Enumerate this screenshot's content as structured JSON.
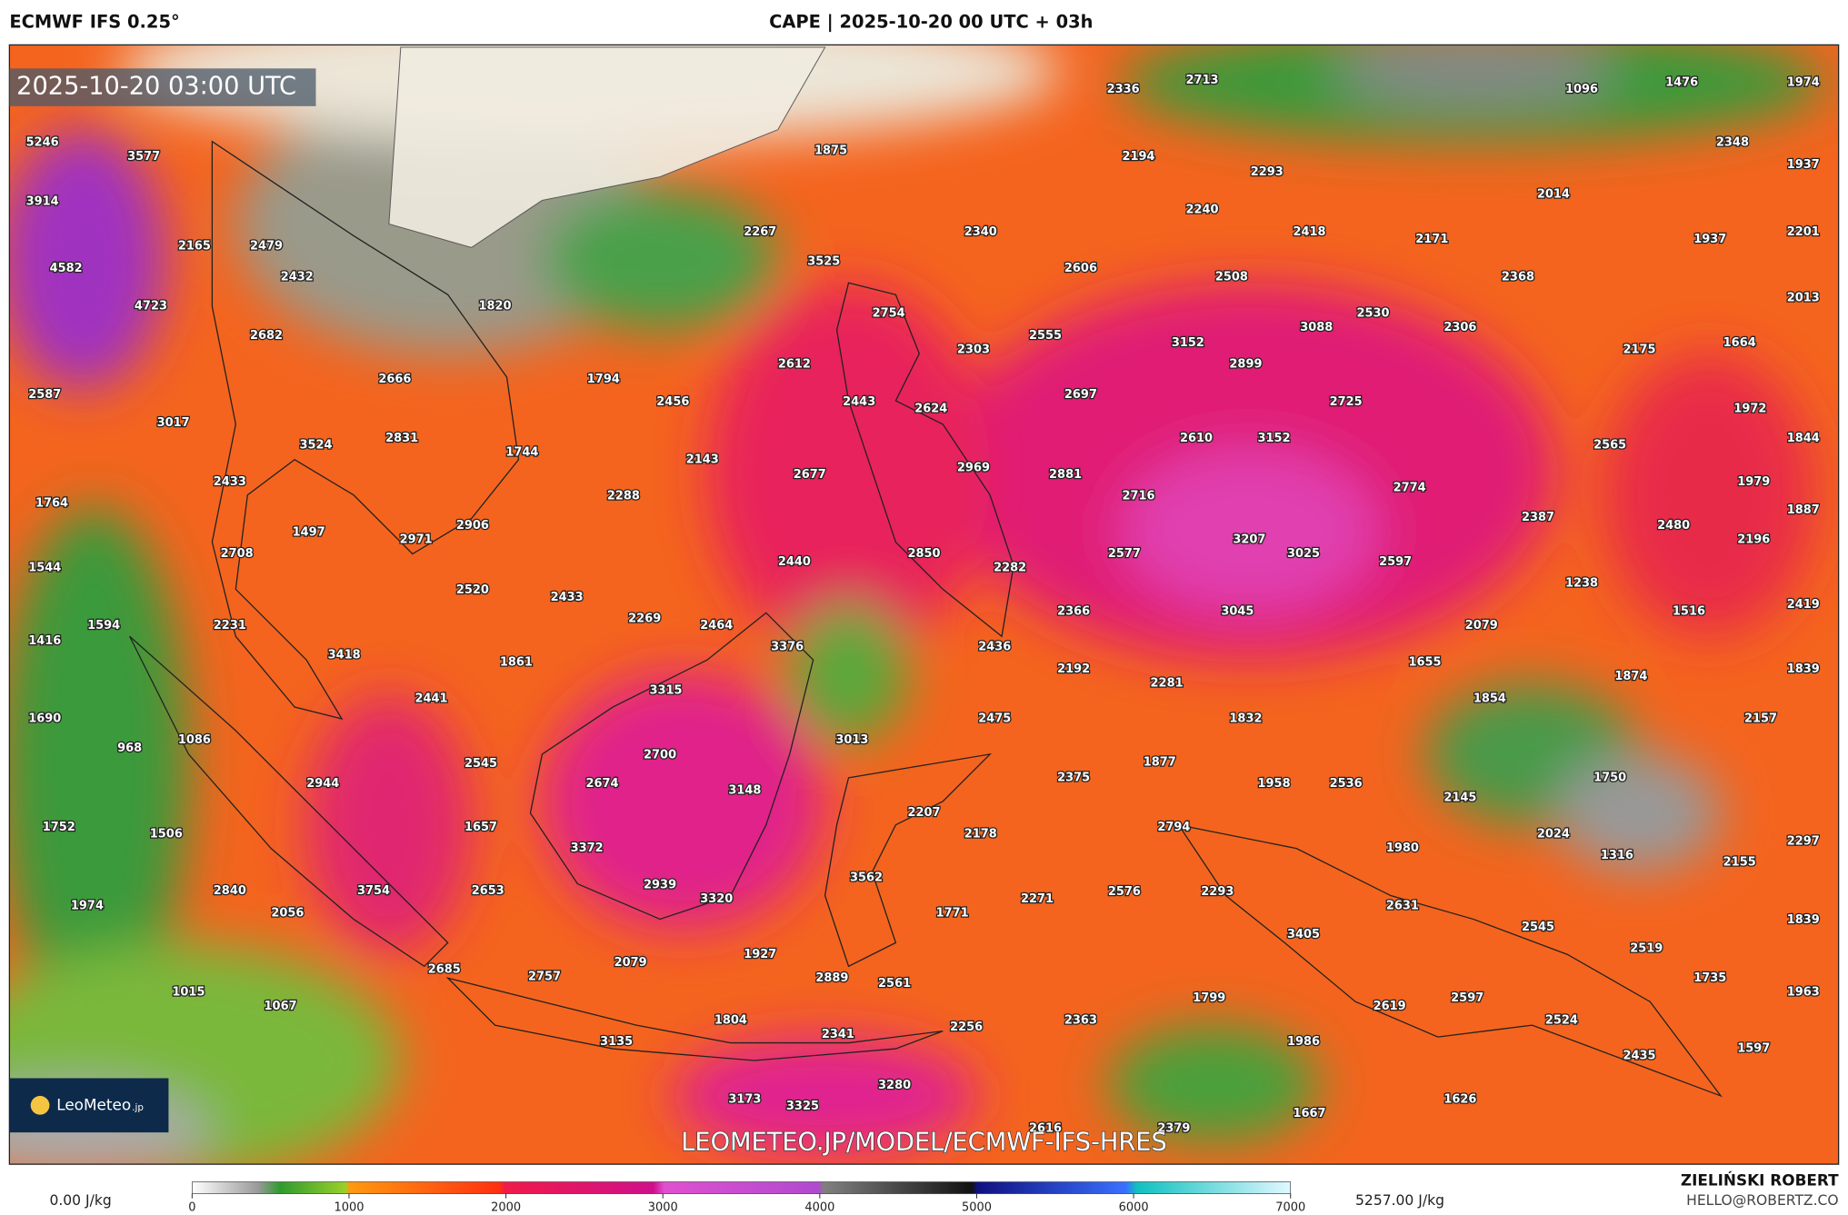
{
  "header": {
    "model": "ECMWF IFS 0.25°",
    "title": "CAPE | 2025-10-20 00 UTC + 03h"
  },
  "map": {
    "timestamp": "2025-10-20 03:00 UTC",
    "watermark": "LEOMETEO.JP/MODEL/ECMWF-IFS-HRES",
    "logo": {
      "name": "LeoMeteo",
      "suffix": ".jp"
    },
    "labels": [
      2336,
      2713,
      1096,
      1476,
      1974,
      3577,
      1875,
      2194,
      2293,
      2348,
      1937,
      3914,
      2240,
      2418,
      2014,
      2171,
      1937,
      2201,
      5246,
      4582,
      2165,
      2479,
      2267,
      2340,
      3525,
      2606,
      2508,
      2368,
      2432,
      1820,
      4723,
      2754,
      2530,
      2306,
      2013,
      2682,
      2555,
      2303,
      3152,
      3088,
      2175,
      1664,
      2666,
      1794,
      2612,
      2899,
      2587,
      2456,
      2443,
      2624,
      2697,
      2725,
      1972,
      3017,
      3524,
      2831,
      1744,
      2143,
      2610,
      3152,
      2565,
      1844,
      2433,
      2677,
      2969,
      2881,
      1979,
      1764,
      2288,
      2716,
      2774,
      2387,
      1887,
      1497,
      2906,
      2971,
      3207,
      3025,
      2577,
      2480,
      2196,
      2708,
      2440,
      2850,
      2282,
      2597,
      1544,
      2520,
      2433,
      1238,
      1594,
      2231,
      2269,
      2464,
      2366,
      3045,
      2079,
      1516,
      2419,
      1416,
      3376,
      2436,
      3418,
      1861,
      2192,
      1655,
      2281,
      1874,
      1839,
      3315,
      2441,
      1854,
      1690,
      2475,
      1832,
      2157,
      968,
      1086,
      3013,
      2700,
      2545,
      1877,
      2944,
      2674,
      3148,
      2375,
      1958,
      2536,
      1750,
      2145,
      2207,
      2794,
      1752,
      1506,
      1657,
      2178,
      1980,
      2024,
      2297,
      3372,
      1316,
      2155,
      2939,
      3562,
      3754,
      2653,
      2271,
      2576,
      2293,
      2840,
      3320,
      2631,
      1771,
      1974,
      2056,
      3405,
      2545,
      2519,
      1839,
      2079,
      1927,
      2685,
      2757,
      2889,
      2561,
      1735,
      1015,
      1067,
      1799,
      2597,
      1963,
      2619,
      2524,
      1804,
      2363,
      2256,
      3135,
      2341,
      1986,
      1597,
      2435,
      3280,
      3173,
      3325,
      1626,
      1667,
      2616,
      2379
    ]
  },
  "colorbar": {
    "lim": [
      0,
      7000
    ],
    "ticks": [
      0,
      1000,
      2000,
      3000,
      4000,
      5000,
      6000,
      7000
    ],
    "min_label": "0.00 J/kg",
    "max_label": "5257.00 J/kg"
  },
  "credit": {
    "author": "ZIELIŃSKI ROBERT",
    "email": "HELLO@ROBERTZ.CO"
  }
}
